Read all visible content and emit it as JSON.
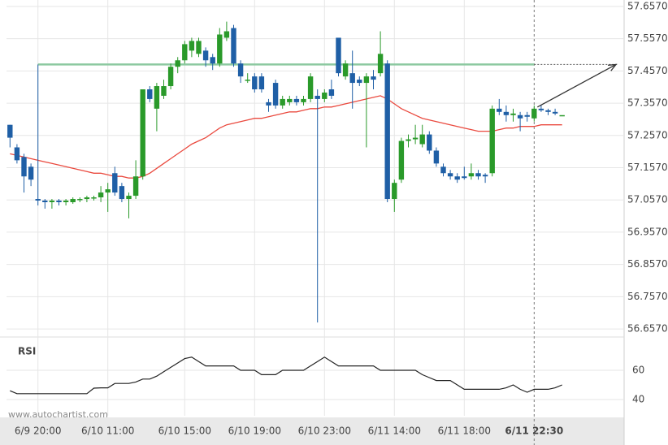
{
  "chart_data": {
    "type": "candlestick",
    "watermark": "www.autochartist.com",
    "categories": [
      null,
      null,
      null,
      null,
      "6/9 20:00",
      null,
      null,
      null,
      null,
      null,
      null,
      null,
      null,
      null,
      "6/10 11:00",
      null,
      null,
      null,
      null,
      null,
      null,
      null,
      null,
      null,
      null,
      "6/10 15:00",
      null,
      null,
      null,
      null,
      null,
      null,
      null,
      null,
      null,
      "6/10 19:00",
      null,
      null,
      null,
      null,
      null,
      null,
      null,
      null,
      null,
      "6/10 23:00",
      null,
      null,
      null,
      null,
      null,
      null,
      null,
      null,
      null,
      "6/11 14:00",
      null,
      null,
      null,
      null,
      null,
      null,
      null,
      null,
      null,
      "6/11 18:00",
      null,
      null,
      null,
      null,
      null,
      null,
      null,
      null,
      null,
      "6/11 22:30",
      null,
      null,
      null,
      null
    ],
    "open": [
      57.29,
      57.22,
      57.19,
      57.16,
      57.06,
      57.055,
      57.05,
      57.055,
      57.05,
      57.05,
      57.06,
      57.06,
      57.065,
      57.065,
      57.08,
      57.14,
      57.1,
      57.06,
      57.07,
      57.13,
      57.4,
      57.34,
      57.38,
      57.41,
      57.47,
      57.49,
      57.52,
      57.51,
      57.52,
      57.5,
      57.48,
      57.56,
      57.59,
      57.48,
      57.43,
      57.44,
      57.44,
      57.36,
      57.42,
      57.35,
      57.36,
      57.37,
      57.36,
      57.37,
      57.38,
      57.37,
      57.4,
      57.56,
      57.44,
      57.45,
      57.43,
      57.42,
      57.44,
      57.45,
      57.48,
      57.06,
      57.12,
      57.24,
      57.245,
      57.23,
      57.26,
      57.21,
      57.16,
      57.14,
      57.13,
      57.13,
      57.13,
      57.14,
      57.135,
      57.14,
      57.34,
      57.33,
      57.32,
      57.32,
      57.32,
      57.31,
      57.34,
      57.335,
      57.33,
      57.32
    ],
    "high": [
      57.29,
      57.23,
      57.2,
      57.17,
      57.477,
      57.06,
      57.06,
      57.06,
      57.06,
      57.065,
      57.065,
      57.07,
      57.07,
      57.1,
      57.11,
      57.16,
      57.11,
      57.08,
      57.18,
      57.4,
      57.41,
      57.42,
      57.43,
      57.48,
      57.5,
      57.55,
      57.56,
      57.56,
      57.53,
      57.51,
      57.59,
      57.61,
      57.6,
      57.49,
      57.45,
      57.45,
      57.45,
      57.37,
      57.43,
      57.38,
      57.38,
      57.38,
      57.38,
      57.45,
      57.4,
      57.4,
      57.43,
      57.56,
      57.49,
      57.52,
      57.44,
      57.45,
      57.46,
      57.58,
      57.49,
      57.12,
      57.25,
      57.26,
      57.29,
      57.29,
      57.27,
      57.22,
      57.17,
      57.15,
      57.14,
      57.16,
      57.17,
      57.15,
      57.14,
      57.35,
      57.37,
      57.35,
      57.34,
      57.33,
      57.33,
      57.35,
      57.35,
      57.34,
      57.34,
      57.32
    ],
    "low": [
      57.22,
      57.17,
      57.08,
      57.1,
      57.04,
      57.03,
      57.03,
      57.04,
      57.04,
      57.045,
      57.05,
      57.05,
      57.055,
      57.05,
      57.02,
      57.07,
      57.05,
      57.0,
      57.06,
      57.12,
      57.36,
      57.27,
      57.37,
      57.4,
      57.45,
      57.48,
      57.5,
      57.5,
      57.47,
      57.46,
      57.47,
      57.55,
      57.47,
      57.42,
      57.42,
      57.39,
      57.39,
      57.33,
      57.34,
      57.34,
      57.35,
      57.35,
      57.35,
      57.36,
      56.677,
      57.36,
      57.37,
      57.44,
      57.43,
      57.34,
      57.41,
      57.22,
      57.4,
      57.44,
      57.05,
      57.02,
      57.11,
      57.22,
      57.23,
      57.22,
      57.2,
      57.16,
      57.13,
      57.12,
      57.11,
      57.12,
      57.12,
      57.12,
      57.11,
      57.13,
      57.32,
      57.3,
      57.3,
      57.27,
      57.3,
      57.3,
      57.33,
      57.32,
      57.32,
      57.32
    ],
    "close": [
      57.25,
      57.18,
      57.13,
      57.12,
      57.055,
      57.05,
      57.055,
      57.05,
      57.055,
      57.06,
      57.06,
      57.065,
      57.065,
      57.08,
      57.09,
      57.08,
      57.06,
      57.07,
      57.13,
      57.4,
      57.37,
      57.41,
      57.41,
      57.47,
      57.49,
      57.54,
      57.55,
      57.55,
      57.49,
      57.48,
      57.57,
      57.58,
      57.48,
      57.44,
      57.43,
      57.4,
      57.4,
      57.35,
      57.35,
      57.37,
      57.37,
      57.36,
      57.37,
      57.44,
      57.37,
      57.39,
      57.38,
      57.45,
      57.48,
      57.42,
      57.42,
      57.44,
      57.43,
      57.51,
      57.06,
      57.11,
      57.24,
      57.245,
      57.25,
      57.26,
      57.21,
      57.17,
      57.14,
      57.13,
      57.12,
      57.125,
      57.14,
      57.13,
      57.13,
      57.34,
      57.33,
      57.32,
      57.325,
      57.31,
      57.315,
      57.34,
      57.335,
      57.33,
      57.325,
      57.32
    ],
    "up_color": "#2a9a2a",
    "down_color": "#1f5fa6",
    "moving_average": {
      "color": "#ea4a3f",
      "values": [
        57.2,
        57.195,
        57.19,
        57.185,
        57.18,
        57.175,
        57.17,
        57.165,
        57.16,
        57.155,
        57.15,
        57.145,
        57.14,
        57.14,
        57.135,
        57.13,
        57.13,
        57.125,
        57.125,
        57.13,
        57.14,
        57.155,
        57.17,
        57.185,
        57.2,
        57.215,
        57.23,
        57.24,
        57.25,
        57.265,
        57.28,
        57.29,
        57.295,
        57.3,
        57.305,
        57.31,
        57.31,
        57.315,
        57.32,
        57.325,
        57.33,
        57.33,
        57.335,
        57.34,
        57.34,
        57.345,
        57.345,
        57.35,
        57.355,
        57.36,
        57.365,
        57.37,
        57.375,
        57.38,
        57.37,
        57.355,
        57.34,
        57.33,
        57.32,
        57.31,
        57.305,
        57.3,
        57.295,
        57.29,
        57.285,
        57.28,
        57.275,
        57.27,
        57.27,
        57.27,
        57.275,
        57.28,
        57.28,
        57.285,
        57.285,
        57.285,
        57.29,
        57.29,
        57.29,
        57.29
      ]
    },
    "level": {
      "value": 57.477,
      "color": "#8cc9a0"
    },
    "ylim": [
      56.632,
      57.677
    ],
    "yticks": [
      {
        "value": 57.657,
        "label": "57.6570"
      },
      {
        "value": 57.557,
        "label": "57.5570"
      },
      {
        "value": 57.457,
        "label": "57.4570"
      },
      {
        "value": 57.357,
        "label": "57.3570"
      },
      {
        "value": 57.257,
        "label": "57.2570"
      },
      {
        "value": 57.157,
        "label": "57.1570"
      },
      {
        "value": 57.057,
        "label": "57.0570"
      },
      {
        "value": 56.957,
        "label": "56.9570"
      },
      {
        "value": 56.857,
        "label": "56.8570"
      },
      {
        "value": 56.757,
        "label": "56.7570"
      },
      {
        "value": 56.657,
        "label": "56.6570"
      }
    ],
    "grid": true,
    "rsi": {
      "title": "RSI",
      "ylim": [
        28.9,
        82.8
      ],
      "yticks": [
        60,
        40
      ],
      "color": "#222222",
      "values": [
        46,
        44,
        44,
        44,
        44,
        44,
        44,
        44,
        44,
        44,
        44,
        44,
        47.8,
        48,
        48,
        51,
        51,
        51,
        52,
        54,
        54,
        56,
        59,
        62,
        65,
        68,
        69,
        66,
        63,
        63,
        63,
        63,
        63,
        60,
        60,
        60,
        57,
        57,
        57,
        60,
        60,
        60,
        60,
        63,
        66,
        69,
        66,
        63,
        63,
        63,
        63,
        63,
        63,
        60,
        60,
        60,
        60,
        60,
        60,
        57,
        55,
        53,
        53,
        53,
        50,
        47,
        47,
        47,
        47,
        47,
        47,
        48,
        50,
        47,
        45,
        47,
        47,
        47,
        48,
        50
      ]
    }
  }
}
